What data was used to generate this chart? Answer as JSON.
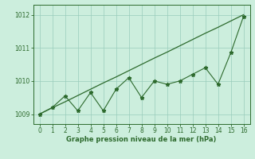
{
  "x": [
    0,
    1,
    2,
    3,
    4,
    5,
    6,
    7,
    8,
    9,
    10,
    11,
    12,
    13,
    14,
    15,
    16
  ],
  "y_zigzag": [
    1009.0,
    1009.2,
    1009.55,
    1009.1,
    1009.65,
    1009.1,
    1009.75,
    1010.1,
    1009.5,
    1010.0,
    1009.9,
    1010.0,
    1010.2,
    1010.4,
    1009.9,
    1010.85,
    1011.95
  ],
  "y_trend": [
    1009.0,
    1009.19,
    1009.37,
    1009.56,
    1009.75,
    1009.94,
    1010.12,
    1010.31,
    1010.5,
    1010.69,
    1010.87,
    1011.06,
    1011.25,
    1011.44,
    1011.62,
    1011.81,
    1012.0
  ],
  "line_color": "#2d6a2d",
  "bg_color": "#cceedd",
  "grid_color": "#99ccbb",
  "xlabel": "Graphe pression niveau de la mer (hPa)",
  "ylim": [
    1008.7,
    1012.3
  ],
  "xlim": [
    -0.5,
    16.5
  ],
  "yticks": [
    1009,
    1010,
    1011,
    1012
  ],
  "xticks": [
    0,
    1,
    2,
    3,
    4,
    5,
    6,
    7,
    8,
    9,
    10,
    11,
    12,
    13,
    14,
    15,
    16
  ]
}
